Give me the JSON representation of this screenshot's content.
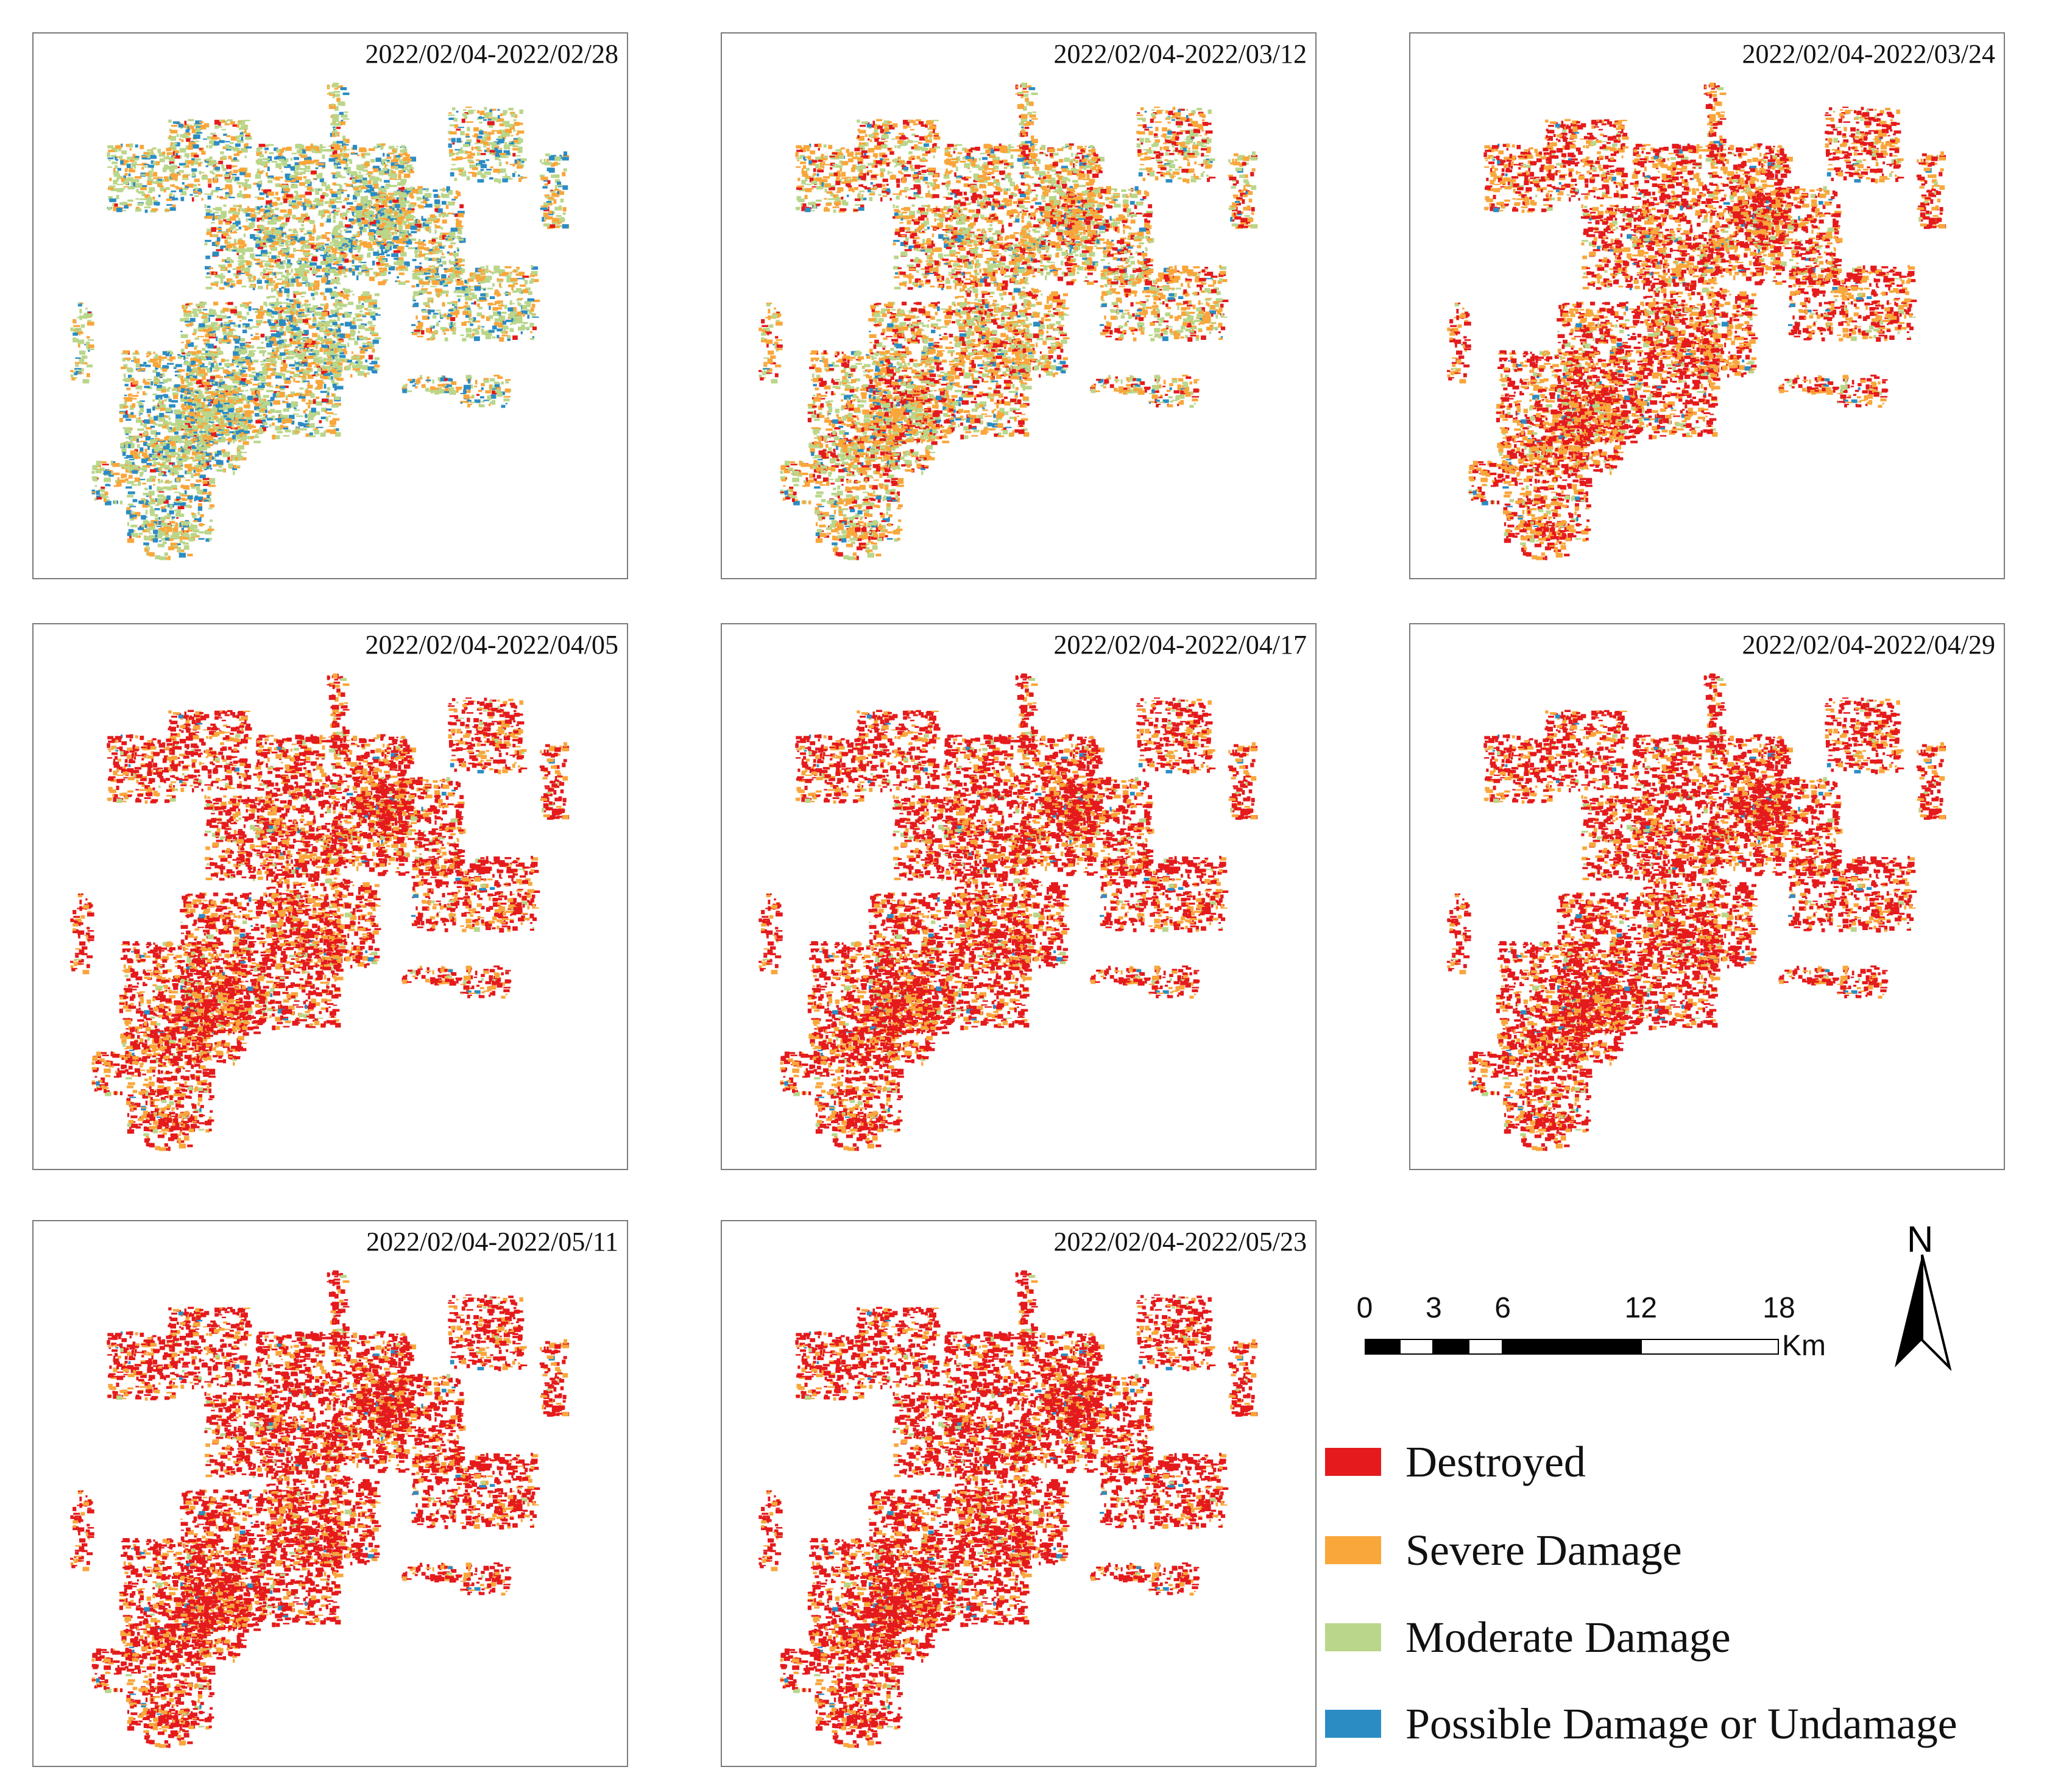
{
  "panels": [
    {
      "date": "2022/02/04-2022/02/28",
      "mix": [
        0.04,
        0.3,
        0.46,
        0.2
      ]
    },
    {
      "date": "2022/02/04-2022/03/12",
      "mix": [
        0.22,
        0.44,
        0.28,
        0.06
      ]
    },
    {
      "date": "2022/02/04-2022/03/24",
      "mix": [
        0.52,
        0.38,
        0.08,
        0.02
      ]
    },
    {
      "date": "2022/02/04-2022/04/05",
      "mix": [
        0.64,
        0.3,
        0.05,
        0.01
      ]
    },
    {
      "date": "2022/02/04-2022/04/17",
      "mix": [
        0.68,
        0.27,
        0.04,
        0.01
      ]
    },
    {
      "date": "2022/02/04-2022/04/29",
      "mix": [
        0.7,
        0.26,
        0.03,
        0.01
      ]
    },
    {
      "date": "2022/02/04-2022/05/11",
      "mix": [
        0.73,
        0.24,
        0.02,
        0.01
      ]
    },
    {
      "date": "2022/02/04-2022/05/23",
      "mix": [
        0.75,
        0.22,
        0.02,
        0.01
      ]
    }
  ],
  "scale_bar": {
    "ticks": [
      "0",
      "3",
      "6",
      "12",
      "18"
    ],
    "tick_values": [
      0,
      3,
      6,
      12,
      18
    ],
    "unit": "Km"
  },
  "north_arrow": {
    "label": "N"
  },
  "legend": [
    {
      "label": "Destroyed",
      "color": "#e41a1c"
    },
    {
      "label": "Severe Damage",
      "color": "#f9a63a"
    },
    {
      "label": "Moderate Damage",
      "color": "#b9d68a"
    },
    {
      "label": "Possible Damage or Undamage",
      "color": "#2b8cc4"
    }
  ]
}
